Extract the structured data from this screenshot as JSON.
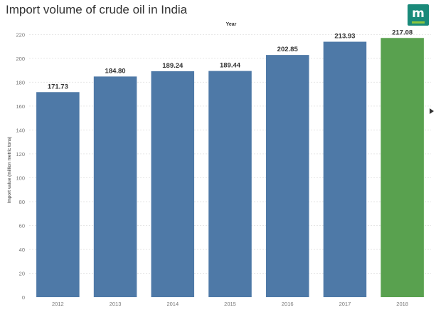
{
  "title": "Import volume of crude oil in India",
  "x_header": "Year",
  "logo_text": "m",
  "chart_data": {
    "type": "bar",
    "title": "Import volume of crude oil in India",
    "xlabel": "Year",
    "ylabel": "Import value (million metric tons)",
    "categories": [
      "2012",
      "2013",
      "2014",
      "2015",
      "2016",
      "2017",
      "2018"
    ],
    "values": [
      171.73,
      184.8,
      189.24,
      189.44,
      202.85,
      213.93,
      217.08
    ],
    "value_labels": [
      "171.73",
      "184.80",
      "189.24",
      "189.44",
      "202.85",
      "213.93",
      "217.08"
    ],
    "yticks": [
      0,
      20,
      40,
      60,
      80,
      100,
      120,
      140,
      160,
      180,
      200,
      220
    ],
    "ylim": [
      0,
      225
    ],
    "grid": true,
    "colors": [
      "#4e79a7",
      "#4e79a7",
      "#4e79a7",
      "#4e79a7",
      "#4e79a7",
      "#4e79a7",
      "#59a14f"
    ]
  }
}
